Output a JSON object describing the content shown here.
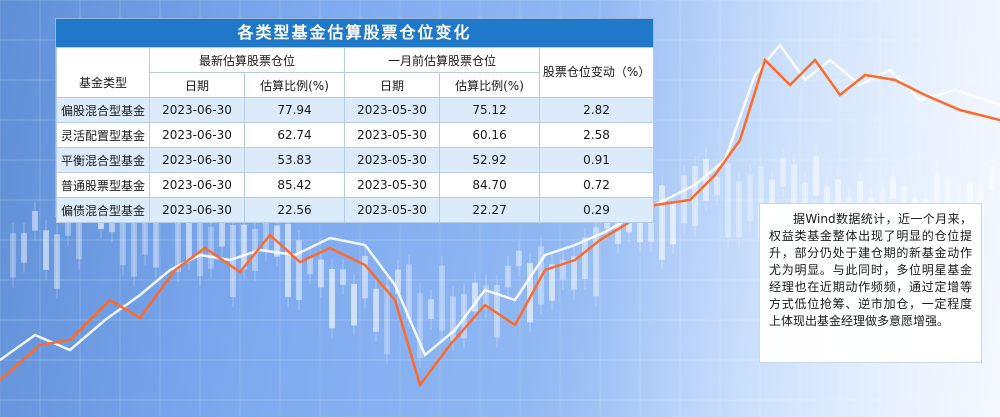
{
  "title": "各类型基金估算股票仓位变化",
  "headers": {
    "fund_type": "基金类型",
    "latest_group": "最新估算股票仓位",
    "month_ago_group": "一月前估算股票仓位",
    "change_col": "股票仓位变动（%）",
    "date": "日期",
    "ratio": "估算比例(%)"
  },
  "rows": [
    {
      "type": "偏股混合型基金",
      "date1": "2023-06-30",
      "ratio1": "77.94",
      "date2": "2023-05-30",
      "ratio2": "75.12",
      "change": "2.82"
    },
    {
      "type": "灵活配置型基金",
      "date1": "2023-06-30",
      "ratio1": "62.74",
      "date2": "2023-05-30",
      "ratio2": "60.16",
      "change": "2.58"
    },
    {
      "type": "平衡混合型基金",
      "date1": "2023-06-30",
      "ratio1": "53.83",
      "date2": "2023-05-30",
      "ratio2": "52.92",
      "change": "0.91"
    },
    {
      "type": "普通股票型基金",
      "date1": "2023-06-30",
      "ratio1": "85.42",
      "date2": "2023-05-30",
      "ratio2": "84.70",
      "change": "0.72"
    },
    {
      "type": "偏债混合型基金",
      "date1": "2023-06-30",
      "ratio1": "22.56",
      "date2": "2023-05-30",
      "ratio2": "22.27",
      "change": "0.29"
    }
  ],
  "note": "据Wind数据统计，近一个月来，权益类基金整体出现了明显的仓位提升，部分仍处于建仓期的新基金动作尤为明显。与此同时，多位明星基金经理也在近期动作频频，通过定增等方式低位抢筹、逆市加仓，一定程度上体现出基金经理做多意愿增强。",
  "colors": {
    "title_bar": "#1f78c8",
    "row_alt": "#dcebfa",
    "line_orange": "#ff6a2a",
    "line_white": "#ffffff",
    "background": "#7eaaf0"
  }
}
